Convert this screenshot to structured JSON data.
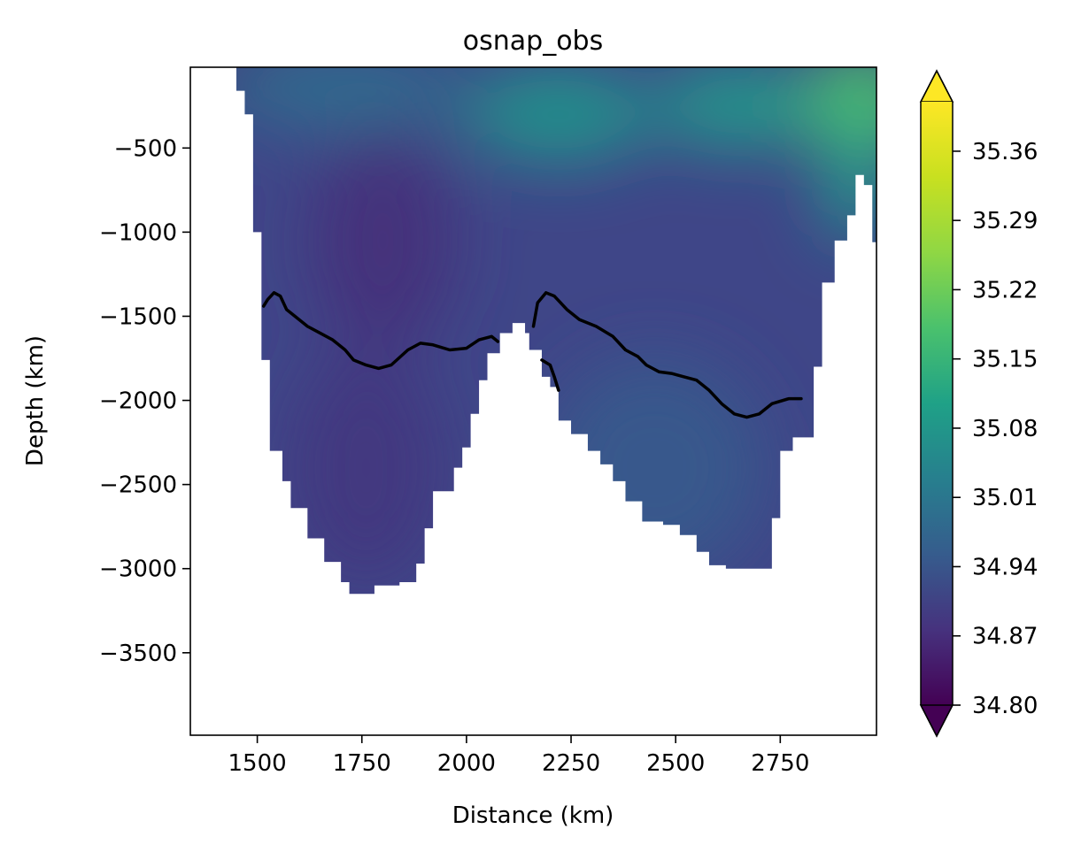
{
  "chart_data": {
    "type": "heatmap",
    "title": "osnap_obs",
    "xlabel": "Distance (km)",
    "ylabel": "Depth (km)",
    "xlim": [
      1340,
      2980
    ],
    "ylim": [
      -3990,
      -20
    ],
    "x_ticks": [
      1500,
      1750,
      2000,
      2250,
      2500,
      2750
    ],
    "x_tick_labels": [
      "1500",
      "1750",
      "2000",
      "2250",
      "2500",
      "2750"
    ],
    "y_ticks": [
      -500,
      -1000,
      -1500,
      -2000,
      -2500,
      -3000,
      -3500
    ],
    "y_tick_labels": [
      "−500",
      "−1000",
      "−1500",
      "−2000",
      "−2500",
      "−3000",
      "−3500"
    ],
    "colorbar": {
      "colormap": "viridis",
      "min": 34.8,
      "max": 35.41,
      "ticks": [
        34.8,
        34.87,
        34.94,
        35.01,
        35.08,
        35.15,
        35.22,
        35.29,
        35.36
      ],
      "tick_labels": [
        "34.80",
        "34.87",
        "34.94",
        "35.01",
        "35.08",
        "35.15",
        "35.22",
        "35.29",
        "35.36"
      ],
      "extend": "both",
      "under_color": "#440154",
      "over_color": "#fde725"
    },
    "field_levels": [
      {
        "region": "background",
        "value": 34.93
      },
      {
        "region": "western-basin-core",
        "value": 34.885
      },
      {
        "region": "western-basin-deep",
        "value": 34.9
      },
      {
        "region": "far-west-surface",
        "value": 34.81
      },
      {
        "region": "eastern-basin-deep",
        "value": 34.97
      },
      {
        "region": "surface-west",
        "value": 35.02
      },
      {
        "region": "surface-mid",
        "value": 35.11
      },
      {
        "region": "surface-east-mid",
        "value": 35.13
      },
      {
        "region": "surface-far-east",
        "value": 35.23
      },
      {
        "region": "eastern-slope",
        "value": 35.13
      }
    ],
    "bathymetry": [
      [
        1340,
        -20
      ],
      [
        1450,
        -20
      ],
      [
        1450,
        -160
      ],
      [
        1470,
        -160
      ],
      [
        1470,
        -300
      ],
      [
        1490,
        -300
      ],
      [
        1490,
        -1000
      ],
      [
        1510,
        -1000
      ],
      [
        1510,
        -1760
      ],
      [
        1530,
        -1760
      ],
      [
        1530,
        -2300
      ],
      [
        1560,
        -2300
      ],
      [
        1560,
        -2480
      ],
      [
        1580,
        -2480
      ],
      [
        1580,
        -2640
      ],
      [
        1620,
        -2640
      ],
      [
        1620,
        -2820
      ],
      [
        1660,
        -2820
      ],
      [
        1660,
        -2960
      ],
      [
        1700,
        -2960
      ],
      [
        1700,
        -3080
      ],
      [
        1720,
        -3080
      ],
      [
        1720,
        -3150
      ],
      [
        1780,
        -3150
      ],
      [
        1780,
        -3100
      ],
      [
        1840,
        -3100
      ],
      [
        1840,
        -3080
      ],
      [
        1880,
        -3080
      ],
      [
        1880,
        -2970
      ],
      [
        1900,
        -2970
      ],
      [
        1900,
        -2760
      ],
      [
        1920,
        -2760
      ],
      [
        1920,
        -2540
      ],
      [
        1970,
        -2540
      ],
      [
        1970,
        -2400
      ],
      [
        1990,
        -2400
      ],
      [
        1990,
        -2280
      ],
      [
        2010,
        -2280
      ],
      [
        2010,
        -2080
      ],
      [
        2030,
        -2080
      ],
      [
        2030,
        -1880
      ],
      [
        2050,
        -1880
      ],
      [
        2050,
        -1720
      ],
      [
        2080,
        -1720
      ],
      [
        2080,
        -1600
      ],
      [
        2110,
        -1600
      ],
      [
        2110,
        -1540
      ],
      [
        2140,
        -1540
      ],
      [
        2140,
        -1600
      ],
      [
        2150,
        -1600
      ],
      [
        2150,
        -1700
      ],
      [
        2180,
        -1700
      ],
      [
        2180,
        -1860
      ],
      [
        2200,
        -1860
      ],
      [
        2200,
        -1920
      ],
      [
        2220,
        -1920
      ],
      [
        2220,
        -2120
      ],
      [
        2250,
        -2120
      ],
      [
        2250,
        -2200
      ],
      [
        2290,
        -2200
      ],
      [
        2290,
        -2300
      ],
      [
        2320,
        -2300
      ],
      [
        2320,
        -2380
      ],
      [
        2350,
        -2380
      ],
      [
        2350,
        -2480
      ],
      [
        2380,
        -2480
      ],
      [
        2380,
        -2600
      ],
      [
        2420,
        -2600
      ],
      [
        2420,
        -2720
      ],
      [
        2470,
        -2720
      ],
      [
        2470,
        -2740
      ],
      [
        2510,
        -2740
      ],
      [
        2510,
        -2800
      ],
      [
        2550,
        -2800
      ],
      [
        2550,
        -2900
      ],
      [
        2580,
        -2900
      ],
      [
        2580,
        -2980
      ],
      [
        2620,
        -2980
      ],
      [
        2620,
        -3000
      ],
      [
        2730,
        -3000
      ],
      [
        2730,
        -2700
      ],
      [
        2750,
        -2700
      ],
      [
        2750,
        -2300
      ],
      [
        2780,
        -2300
      ],
      [
        2780,
        -2220
      ],
      [
        2830,
        -2220
      ],
      [
        2830,
        -1800
      ],
      [
        2850,
        -1800
      ],
      [
        2850,
        -1300
      ],
      [
        2880,
        -1300
      ],
      [
        2880,
        -1050
      ],
      [
        2910,
        -1050
      ],
      [
        2910,
        -900
      ],
      [
        2930,
        -900
      ],
      [
        2930,
        -660
      ],
      [
        2950,
        -660
      ],
      [
        2950,
        -720
      ],
      [
        2970,
        -720
      ],
      [
        2970,
        -1060
      ],
      [
        2980,
        -1060
      ],
      [
        2980,
        -3990
      ],
      [
        1340,
        -3990
      ]
    ],
    "isoline_35_0": [
      [
        [
          1515,
          -1440
        ],
        [
          1525,
          -1400
        ],
        [
          1540,
          -1360
        ],
        [
          1555,
          -1380
        ],
        [
          1570,
          -1460
        ],
        [
          1600,
          -1520
        ],
        [
          1620,
          -1560
        ],
        [
          1650,
          -1600
        ],
        [
          1680,
          -1640
        ],
        [
          1710,
          -1700
        ],
        [
          1730,
          -1760
        ],
        [
          1760,
          -1790
        ],
        [
          1790,
          -1810
        ],
        [
          1820,
          -1790
        ],
        [
          1860,
          -1700
        ],
        [
          1890,
          -1660
        ],
        [
          1920,
          -1670
        ],
        [
          1960,
          -1700
        ],
        [
          2000,
          -1690
        ],
        [
          2030,
          -1640
        ],
        [
          2060,
          -1620
        ],
        [
          2075,
          -1650
        ]
      ],
      [
        [
          2160,
          -1560
        ],
        [
          2170,
          -1420
        ],
        [
          2190,
          -1360
        ],
        [
          2210,
          -1380
        ],
        [
          2240,
          -1460
        ],
        [
          2270,
          -1520
        ],
        [
          2310,
          -1560
        ],
        [
          2350,
          -1620
        ],
        [
          2380,
          -1700
        ],
        [
          2410,
          -1740
        ],
        [
          2430,
          -1790
        ],
        [
          2460,
          -1830
        ],
        [
          2490,
          -1840
        ],
        [
          2520,
          -1860
        ],
        [
          2550,
          -1880
        ],
        [
          2580,
          -1940
        ],
        [
          2610,
          -2020
        ],
        [
          2640,
          -2080
        ],
        [
          2670,
          -2100
        ],
        [
          2700,
          -2080
        ],
        [
          2730,
          -2020
        ],
        [
          2770,
          -1990
        ],
        [
          2800,
          -1990
        ]
      ],
      [
        [
          2180,
          -1760
        ],
        [
          2200,
          -1790
        ],
        [
          2210,
          -1860
        ],
        [
          2220,
          -1940
        ]
      ]
    ]
  }
}
